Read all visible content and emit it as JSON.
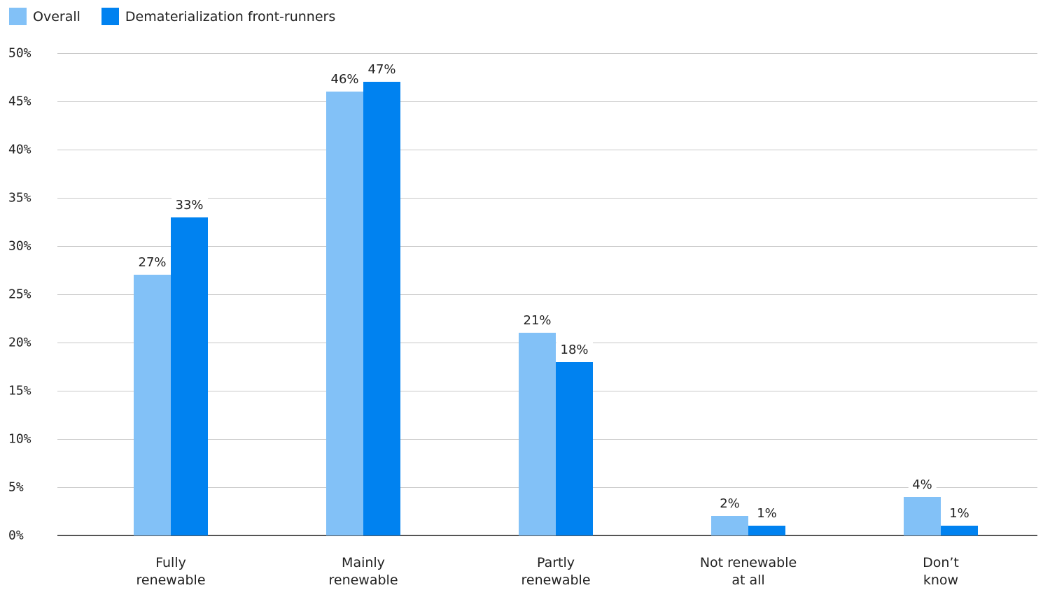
{
  "legend": {
    "items": [
      {
        "label": "Overall",
        "color": "#82c1f7"
      },
      {
        "label": "Dematerialization front-runners",
        "color": "#0082f0"
      }
    ]
  },
  "y_axis": {
    "ticks": [
      "0%",
      "5%",
      "10%",
      "15%",
      "20%",
      "25%",
      "30%",
      "35%",
      "40%",
      "45%",
      "50%"
    ]
  },
  "categories": [
    {
      "line1": "Fully",
      "line2": "renewable"
    },
    {
      "line1": "Mainly",
      "line2": "renewable"
    },
    {
      "line1": "Partly",
      "line2": "renewable"
    },
    {
      "line1": "Not renewable",
      "line2": "at all"
    },
    {
      "line1": "Don’t",
      "line2": "know"
    }
  ],
  "labels": {
    "overall": [
      "27%",
      "46%",
      "21%",
      "2%",
      "4%"
    ],
    "frontrunners": [
      "33%",
      "47%",
      "18%",
      "1%",
      "1%"
    ]
  },
  "chart_data": {
    "type": "bar",
    "title": "",
    "xlabel": "",
    "ylabel": "",
    "ylim": [
      0,
      50
    ],
    "grid": true,
    "legend_position": "top-left",
    "categories": [
      "Fully renewable",
      "Mainly renewable",
      "Partly renewable",
      "Not renewable at all",
      "Don’t know"
    ],
    "series": [
      {
        "name": "Overall",
        "color": "#82c1f7",
        "values": [
          27,
          46,
          21,
          2,
          4
        ]
      },
      {
        "name": "Dematerialization front-runners",
        "color": "#0082f0",
        "values": [
          33,
          47,
          18,
          1,
          1
        ]
      }
    ],
    "y_ticks": [
      "0%",
      "5%",
      "10%",
      "15%",
      "20%",
      "25%",
      "30%",
      "35%",
      "40%",
      "45%",
      "50%"
    ]
  }
}
